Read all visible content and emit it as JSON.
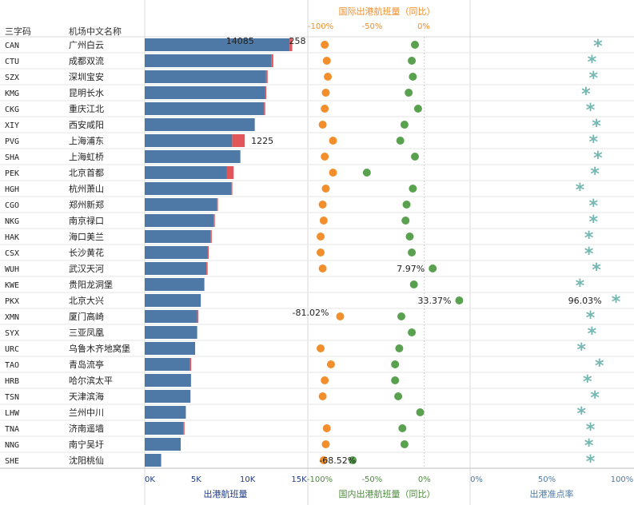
{
  "headers": {
    "code": "三字码",
    "name": "机场中文名称",
    "intl_title": "国际出港航班量（同比）"
  },
  "axis_titles": {
    "departures": "出港航班量",
    "domestic": "国内出港航班量（同比）",
    "ontime": "出港准点率"
  },
  "colors": {
    "bar_domestic": "#4e79a7",
    "bar_intl": "#e15759",
    "domestic_dot": "#59a14f",
    "intl_dot": "#f28e2b",
    "star": "#76b7b2",
    "axis_departures": "#1f3c88",
    "axis_domestic": "#4e8a3e",
    "axis_intl": "#f28e2b",
    "axis_ontime": "#4e79a7"
  },
  "chart_data": {
    "type": "bar",
    "airports": [
      {
        "code": "CAN",
        "name": "广州白云",
        "domestic_departures": 14085,
        "intl_departures": 258,
        "domestic_yoy": -9,
        "intl_yoy": -96,
        "ontime": 84
      },
      {
        "code": "CTU",
        "name": "成都双流",
        "domestic_departures": 12300,
        "intl_departures": 200,
        "domestic_yoy": -12,
        "intl_yoy": -94,
        "ontime": 80
      },
      {
        "code": "SZX",
        "name": "深圳宝安",
        "domestic_departures": 11800,
        "intl_departures": 150,
        "domestic_yoy": -11,
        "intl_yoy": -93,
        "ontime": 81
      },
      {
        "code": "KMG",
        "name": "昆明长水",
        "domestic_departures": 11700,
        "intl_departures": 100,
        "domestic_yoy": -15,
        "intl_yoy": -95,
        "ontime": 76
      },
      {
        "code": "CKG",
        "name": "重庆江北",
        "domestic_departures": 11600,
        "intl_departures": 100,
        "domestic_yoy": -6,
        "intl_yoy": -96,
        "ontime": 79
      },
      {
        "code": "XIY",
        "name": "西安咸阳",
        "domestic_departures": 10700,
        "intl_departures": 0,
        "domestic_yoy": -19,
        "intl_yoy": -98,
        "ontime": 83
      },
      {
        "code": "PVG",
        "name": "上海浦东",
        "domestic_departures": 8500,
        "intl_departures": 1225,
        "domestic_yoy": -23,
        "intl_yoy": -88,
        "ontime": 81
      },
      {
        "code": "SHA",
        "name": "上海虹桥",
        "domestic_departures": 9300,
        "intl_departures": 0,
        "domestic_yoy": -9,
        "intl_yoy": -96,
        "ontime": 84
      },
      {
        "code": "PEK",
        "name": "北京首都",
        "domestic_departures": 8000,
        "intl_departures": 650,
        "domestic_yoy": -55,
        "intl_yoy": -88,
        "ontime": 82
      },
      {
        "code": "HGH",
        "name": "杭州萧山",
        "domestic_departures": 8400,
        "intl_departures": 50,
        "domestic_yoy": -11,
        "intl_yoy": -95,
        "ontime": 72
      },
      {
        "code": "CGO",
        "name": "郑州新郑",
        "domestic_departures": 7000,
        "intl_departures": 30,
        "domestic_yoy": -17,
        "intl_yoy": -98,
        "ontime": 81
      },
      {
        "code": "NKG",
        "name": "南京禄口",
        "domestic_departures": 6700,
        "intl_departures": 60,
        "domestic_yoy": -18,
        "intl_yoy": -97,
        "ontime": 81
      },
      {
        "code": "HAK",
        "name": "海口美兰",
        "domestic_departures": 6400,
        "intl_departures": 20,
        "domestic_yoy": -14,
        "intl_yoy": -100,
        "ontime": 78
      },
      {
        "code": "CSX",
        "name": "长沙黄花",
        "domestic_departures": 6100,
        "intl_departures": 40,
        "domestic_yoy": -12,
        "intl_yoy": -100,
        "ontime": 78
      },
      {
        "code": "WUH",
        "name": "武汉天河",
        "domestic_departures": 6000,
        "intl_departures": 20,
        "domestic_yoy": 7.97,
        "intl_yoy": -98,
        "ontime": 83
      },
      {
        "code": "KWE",
        "name": "贵阳龙洞堡",
        "domestic_departures": 5800,
        "intl_departures": 0,
        "domestic_yoy": -10,
        "intl_yoy": null,
        "ontime": 72
      },
      {
        "code": "PKX",
        "name": "北京大兴",
        "domestic_departures": 5450,
        "intl_departures": 0,
        "domestic_yoy": 33.37,
        "intl_yoy": null,
        "ontime": 96.03
      },
      {
        "code": "XMN",
        "name": "厦门高崎",
        "domestic_departures": 5100,
        "intl_departures": 120,
        "domestic_yoy": -22,
        "intl_yoy": -81.02,
        "ontime": 79
      },
      {
        "code": "SYX",
        "name": "三亚凤凰",
        "domestic_departures": 5100,
        "intl_departures": 0,
        "domestic_yoy": -12,
        "intl_yoy": null,
        "ontime": 80
      },
      {
        "code": "URC",
        "name": "乌鲁木齐地窝堡",
        "domestic_departures": 4900,
        "intl_departures": 0,
        "domestic_yoy": -24,
        "intl_yoy": -100,
        "ontime": 73
      },
      {
        "code": "TAO",
        "name": "青岛流亭",
        "domestic_departures": 4400,
        "intl_departures": 50,
        "domestic_yoy": -28,
        "intl_yoy": -90,
        "ontime": 85
      },
      {
        "code": "HRB",
        "name": "哈尔滨太平",
        "domestic_departures": 4500,
        "intl_departures": 0,
        "domestic_yoy": -28,
        "intl_yoy": -96,
        "ontime": 77
      },
      {
        "code": "TSN",
        "name": "天津滨海",
        "domestic_departures": 4450,
        "intl_departures": 0,
        "domestic_yoy": -25,
        "intl_yoy": -98,
        "ontime": 82
      },
      {
        "code": "LHW",
        "name": "兰州中川",
        "domestic_departures": 4000,
        "intl_departures": 0,
        "domestic_yoy": -4,
        "intl_yoy": null,
        "ontime": 73
      },
      {
        "code": "TNA",
        "name": "济南遥墙",
        "domestic_departures": 3750,
        "intl_departures": 50,
        "domestic_yoy": -21,
        "intl_yoy": -94,
        "ontime": 79
      },
      {
        "code": "NNG",
        "name": "南宁吴圩",
        "domestic_departures": 3500,
        "intl_departures": 0,
        "domestic_yoy": -19,
        "intl_yoy": -95,
        "ontime": 78
      },
      {
        "code": "SHE",
        "name": "沈阳桃仙",
        "domestic_departures": 1600,
        "intl_departures": 0,
        "domestic_yoy": -68.52,
        "intl_yoy": -97,
        "ontime": 79
      }
    ],
    "labels": [
      {
        "row": 0,
        "field": "domestic_departures",
        "text": "14085"
      },
      {
        "row": 0,
        "field": "intl_departures",
        "text": "258"
      },
      {
        "row": 6,
        "field": "intl_departures",
        "text": "1225"
      },
      {
        "row": 14,
        "field": "domestic_yoy",
        "text": "7.97%"
      },
      {
        "row": 16,
        "field": "domestic_yoy",
        "text": "33.37%"
      },
      {
        "row": 16,
        "field": "ontime",
        "text": "96.03%"
      },
      {
        "row": 17,
        "field": "intl_yoy",
        "text": "-81.02%"
      },
      {
        "row": 26,
        "field": "domestic_yoy",
        "text": "-68.52%"
      }
    ],
    "departures_axis": {
      "min": 0,
      "max": 15000,
      "ticks": [
        0,
        5000,
        10000,
        15000
      ],
      "tick_labels": [
        "0K",
        "5K",
        "10K",
        "15K"
      ]
    },
    "domestic_axis": {
      "min": -100,
      "max": 30,
      "ticks": [
        -100,
        -50,
        0
      ],
      "tick_labels": [
        "-100%",
        "-50%",
        "0%"
      ]
    },
    "intl_axis": {
      "ticks": [
        -100,
        -50,
        0
      ],
      "tick_labels": [
        "-100%",
        "-50%",
        "0%"
      ]
    },
    "ontime_axis": {
      "min": 0,
      "max": 100,
      "ticks": [
        0,
        50,
        100
      ],
      "tick_labels": [
        "0%",
        "50%",
        "100%"
      ]
    }
  }
}
